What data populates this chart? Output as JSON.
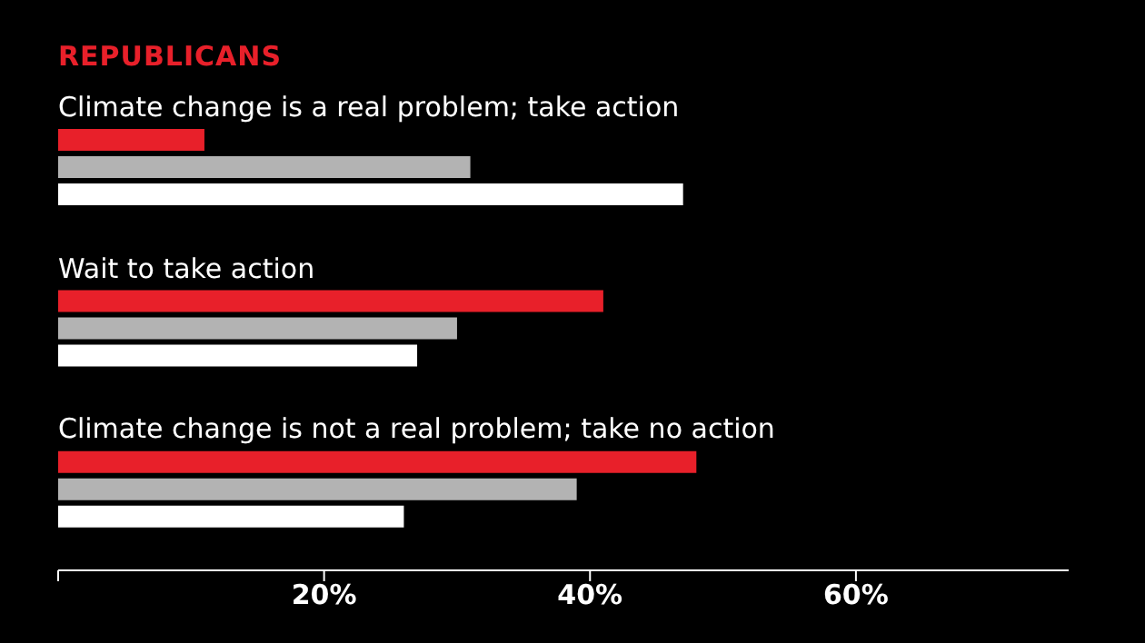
{
  "chart_data": {
    "type": "bar",
    "orientation": "horizontal",
    "title": "REPUBLICANS",
    "categories": [
      "Climate change is a real problem; take action",
      "Wait to take action",
      "Climate change is not a real problem; take no action"
    ],
    "series": [
      {
        "color": "#e8202a",
        "values": [
          11,
          41,
          48
        ]
      },
      {
        "color": "#b3b3b3",
        "values": [
          31,
          30,
          39
        ]
      },
      {
        "color": "#ffffff",
        "values": [
          47,
          27,
          26
        ]
      }
    ],
    "xlim": [
      0,
      76
    ],
    "xticks": [
      {
        "value": 0,
        "label": null
      },
      {
        "value": 20,
        "label": "20%"
      },
      {
        "value": 40,
        "label": "40%"
      },
      {
        "value": 60,
        "label": "60%"
      }
    ],
    "grid": false,
    "legend": false
  }
}
